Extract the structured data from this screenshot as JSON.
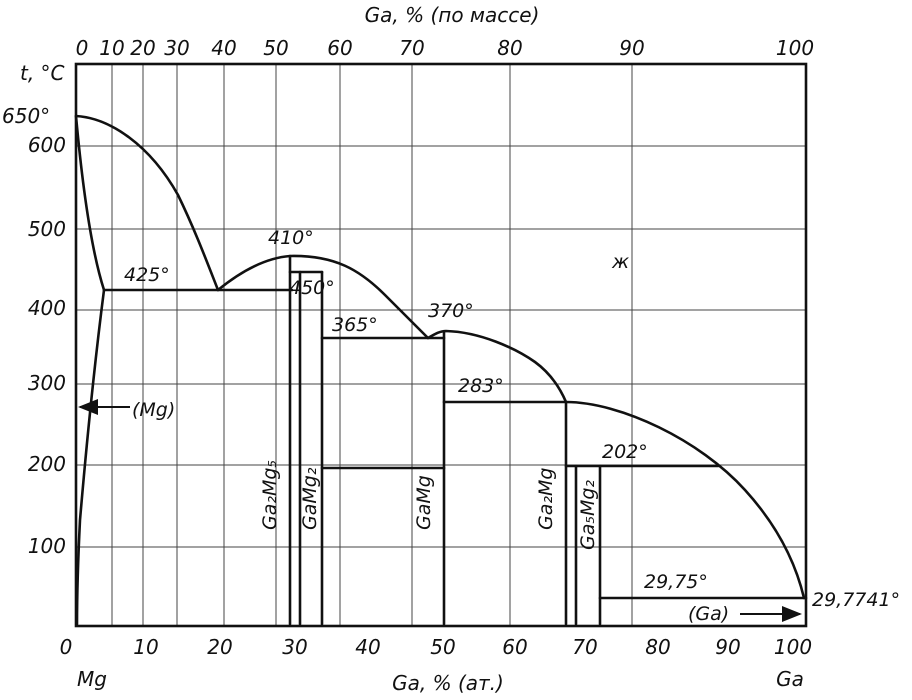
{
  "top_axis": {
    "title": "Ga, % (по массе)",
    "ticks": [
      "0",
      "10",
      "20",
      "30",
      "40",
      "50",
      "60",
      "70",
      "80",
      "90",
      "100"
    ]
  },
  "bottom_axis": {
    "title": "Ga, % (ат.)",
    "ticks": [
      "0",
      "10",
      "20",
      "30",
      "40",
      "50",
      "60",
      "70",
      "80",
      "90",
      "100"
    ],
    "left_element": "Mg",
    "right_element": "Ga"
  },
  "left_axis": {
    "title": "t, °C",
    "ticks": [
      "600",
      "500",
      "400",
      "300",
      "200",
      "100"
    ],
    "melting_label": "650°"
  },
  "annotations": {
    "t425": "425°",
    "t410": "410°",
    "t450": "450°",
    "t365": "365°",
    "t370": "370°",
    "t283": "283°",
    "t202": "202°",
    "t2975": "29,75°",
    "t29774": "29,7741°",
    "liquid": "ж",
    "mg_solid": "(Mg)",
    "ga_solid": "(Ga)"
  },
  "phases": {
    "ga2mg5": "Ga₂Mg₅",
    "gamg2": "GaMg₂",
    "gamg": "GaMg",
    "ga2mg": "Ga₂Mg",
    "ga5mg2": "Ga₅Mg₂"
  }
}
